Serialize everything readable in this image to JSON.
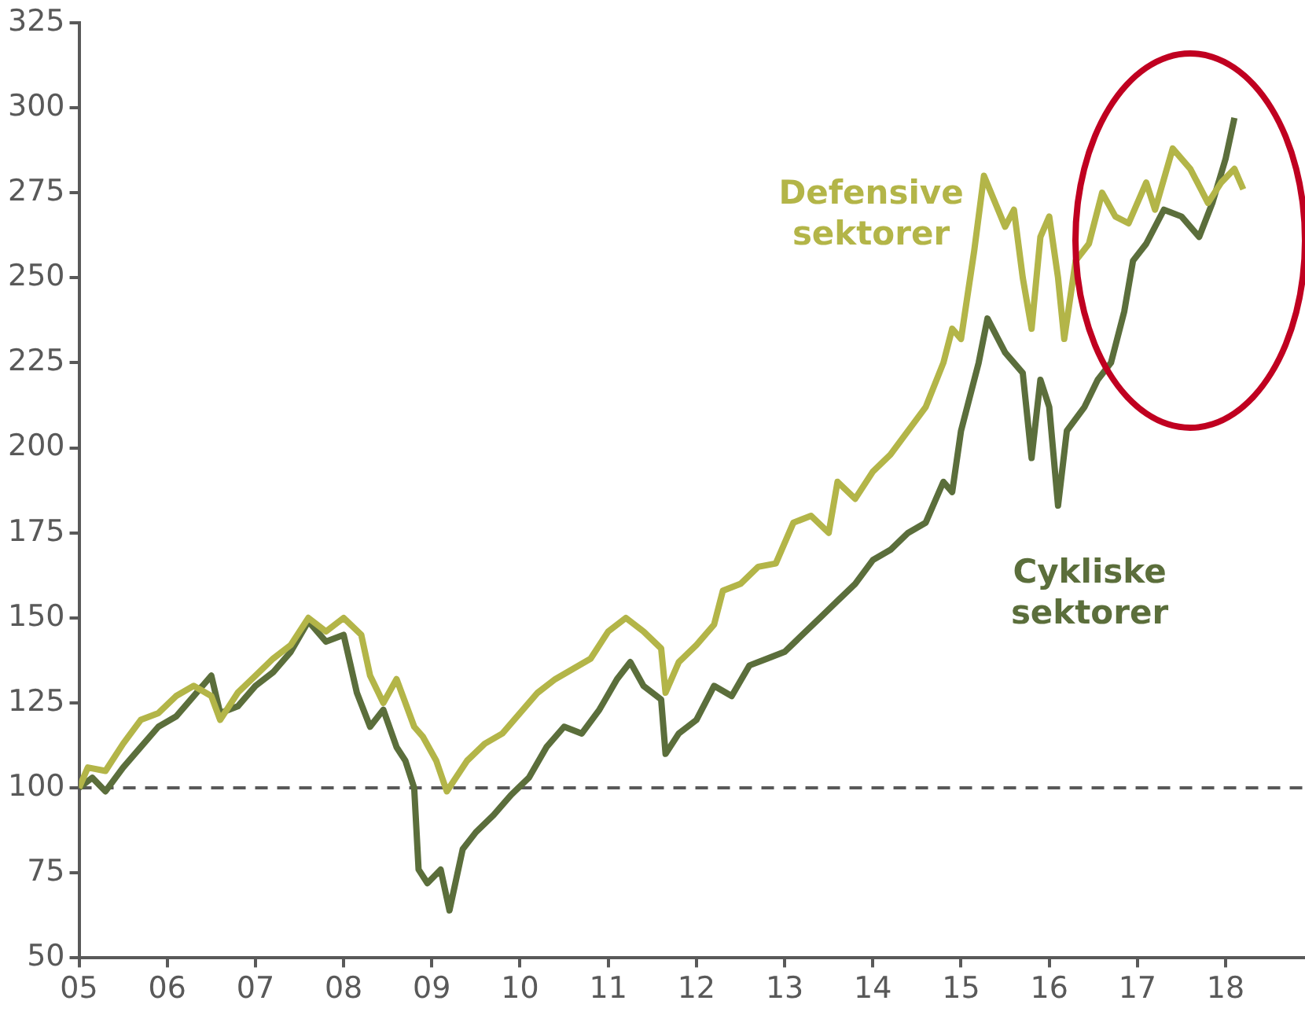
{
  "chart_data": {
    "type": "line",
    "xlim": [
      2005,
      2018.9
    ],
    "xticks": [
      {
        "value": 2005,
        "label": "05"
      },
      {
        "value": 2006,
        "label": "06"
      },
      {
        "value": 2007,
        "label": "07"
      },
      {
        "value": 2008,
        "label": "08"
      },
      {
        "value": 2009,
        "label": "09"
      },
      {
        "value": 2010,
        "label": "10"
      },
      {
        "value": 2011,
        "label": "11"
      },
      {
        "value": 2012,
        "label": "12"
      },
      {
        "value": 2013,
        "label": "13"
      },
      {
        "value": 2014,
        "label": "14"
      },
      {
        "value": 2015,
        "label": "15"
      },
      {
        "value": 2016,
        "label": "16"
      },
      {
        "value": 2017,
        "label": "17"
      },
      {
        "value": 2018,
        "label": "18"
      }
    ],
    "ylim": [
      50,
      325
    ],
    "yticks": [
      50,
      75,
      100,
      125,
      150,
      175,
      200,
      225,
      250,
      275,
      300,
      325
    ],
    "grid": false,
    "legend": false,
    "marker": "none",
    "line_style": "solid",
    "ref_lines": [
      {
        "axis": "y",
        "value": 100,
        "color": "#595959",
        "line_style": "dashed"
      }
    ],
    "series": [
      {
        "name": "Defensive sektorer",
        "color": "#b3b548",
        "x": [
          2005,
          2005.1,
          2005.3,
          2005.5,
          2005.7,
          2005.9,
          2006.1,
          2006.3,
          2006.5,
          2006.6,
          2006.8,
          2007,
          2007.2,
          2007.4,
          2007.6,
          2007.8,
          2008,
          2008.2,
          2008.3,
          2008.45,
          2008.6,
          2008.8,
          2008.9,
          2009.05,
          2009.17,
          2009.4,
          2009.6,
          2009.8,
          2010,
          2010.2,
          2010.4,
          2010.6,
          2010.8,
          2011,
          2011.2,
          2011.4,
          2011.6,
          2011.65,
          2011.8,
          2012,
          2012.2,
          2012.3,
          2012.5,
          2012.7,
          2012.9,
          2013.1,
          2013.3,
          2013.5,
          2013.6,
          2013.8,
          2014,
          2014.2,
          2014.4,
          2014.6,
          2014.8,
          2014.9,
          2015,
          2015.15,
          2015.26,
          2015.5,
          2015.6,
          2015.7,
          2015.8,
          2015.9,
          2016,
          2016.1,
          2016.17,
          2016.3,
          2016.45,
          2016.6,
          2016.75,
          2016.9,
          2017.1,
          2017.2,
          2017.4,
          2017.6,
          2017.8,
          2017.95,
          2018.1,
          2018.2
        ],
        "values": [
          100,
          106,
          105,
          113,
          120,
          122,
          127,
          130,
          127,
          120,
          128,
          133,
          138,
          142,
          150,
          146,
          150,
          145,
          133,
          125,
          132,
          118,
          115,
          108,
          99,
          108,
          113,
          116,
          122,
          128,
          132,
          135,
          138,
          146,
          150,
          146,
          141,
          128,
          137,
          142,
          148,
          158,
          160,
          165,
          166,
          178,
          180,
          175,
          190,
          185,
          193,
          198,
          205,
          212,
          225,
          235,
          232,
          258,
          280,
          265,
          270,
          250,
          235,
          262,
          268,
          250,
          232,
          255,
          260,
          275,
          268,
          266,
          278,
          270,
          288,
          282,
          272,
          278,
          282,
          276
        ]
      },
      {
        "name": "Cykliske sektorer",
        "color": "#5b6e3b",
        "x": [
          2005,
          2005.15,
          2005.3,
          2005.5,
          2005.7,
          2005.9,
          2006.1,
          2006.3,
          2006.5,
          2006.6,
          2006.8,
          2007,
          2007.2,
          2007.4,
          2007.6,
          2007.8,
          2008,
          2008.15,
          2008.3,
          2008.45,
          2008.6,
          2008.7,
          2008.8,
          2008.85,
          2008.95,
          2009.1,
          2009.2,
          2009.35,
          2009.5,
          2009.7,
          2009.9,
          2010.1,
          2010.3,
          2010.5,
          2010.7,
          2010.9,
          2011.1,
          2011.25,
          2011.4,
          2011.6,
          2011.65,
          2011.8,
          2012,
          2012.2,
          2012.4,
          2012.6,
          2012.8,
          2013,
          2013.2,
          2013.4,
          2013.6,
          2013.8,
          2014,
          2014.2,
          2014.4,
          2014.6,
          2014.8,
          2014.9,
          2015,
          2015.2,
          2015.3,
          2015.5,
          2015.7,
          2015.8,
          2015.9,
          2016,
          2016.1,
          2016.2,
          2016.4,
          2016.55,
          2016.7,
          2016.85,
          2016.95,
          2017.1,
          2017.3,
          2017.5,
          2017.7,
          2017.85,
          2018,
          2018.1
        ],
        "values": [
          100,
          103,
          99,
          106,
          112,
          118,
          121,
          127,
          133,
          122,
          124,
          130,
          134,
          140,
          149,
          143,
          145,
          128,
          118,
          123,
          112,
          108,
          100,
          76,
          72,
          76,
          64,
          82,
          87,
          92,
          98,
          103,
          112,
          118,
          116,
          123,
          132,
          137,
          130,
          126,
          110,
          116,
          120,
          130,
          127,
          136,
          138,
          140,
          145,
          150,
          155,
          160,
          167,
          170,
          175,
          178,
          190,
          187,
          205,
          225,
          238,
          228,
          222,
          197,
          220,
          212,
          183,
          205,
          212,
          220,
          225,
          240,
          255,
          260,
          270,
          268,
          262,
          272,
          285,
          297
        ]
      }
    ]
  }
}
